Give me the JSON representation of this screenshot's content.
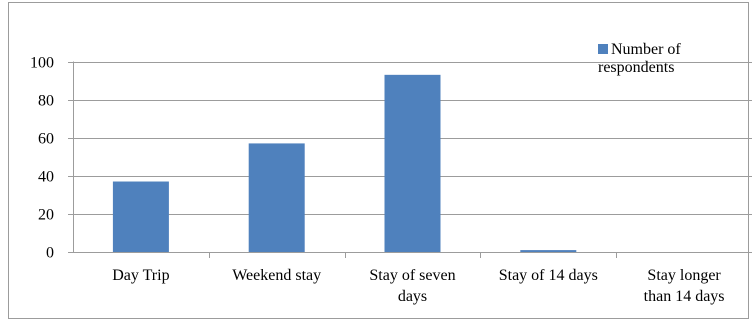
{
  "chart_data": {
    "type": "bar",
    "categories": [
      [
        "Day Trip"
      ],
      [
        "Weekend stay"
      ],
      [
        "Stay of seven",
        "days"
      ],
      [
        "Stay of 14 days"
      ],
      [
        "Stay longer",
        "than 14 days"
      ]
    ],
    "series": [
      {
        "name": "Number of respondents",
        "values": [
          37,
          57,
          93,
          1,
          0
        ],
        "color": "#4F81BD"
      }
    ],
    "ylim": [
      0,
      100
    ],
    "yticks": [
      "0",
      "20",
      "40",
      "60",
      "80",
      "100"
    ],
    "grid": true,
    "legend_position": "top-right",
    "title": "",
    "xlabel": "",
    "ylabel": ""
  }
}
